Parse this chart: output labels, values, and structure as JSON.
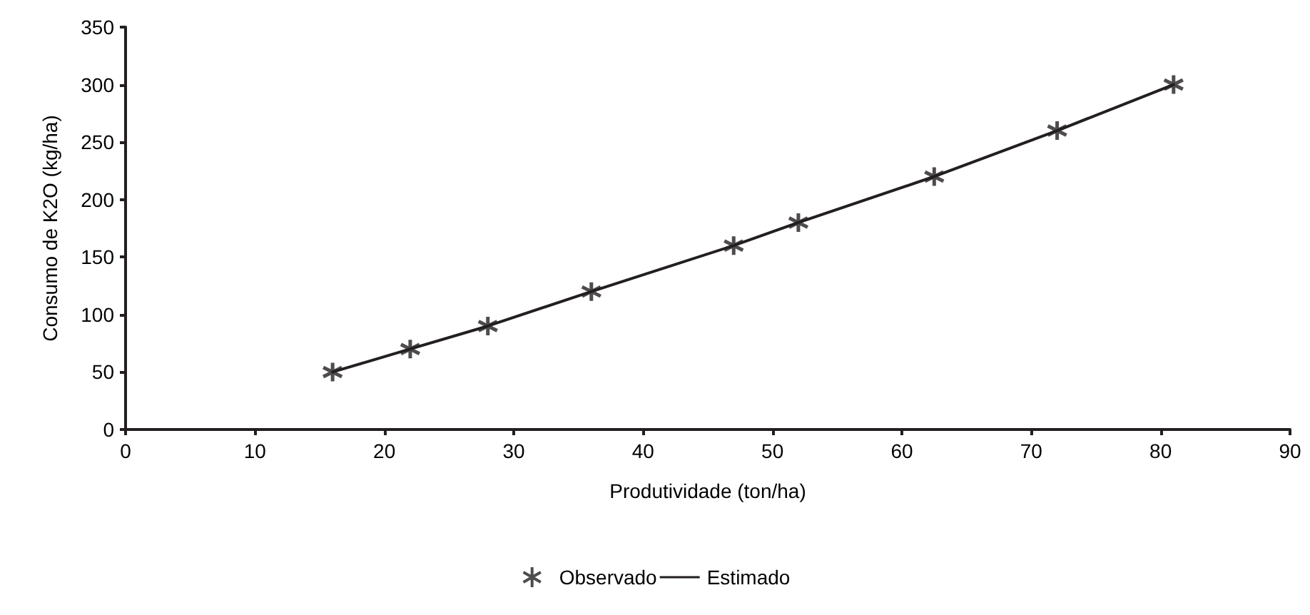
{
  "chart_data": {
    "type": "scatter",
    "xlabel": "Produtividade (ton/ha)",
    "ylabel": "Consumo de K2O (kg/ha)",
    "xlim": [
      0,
      90
    ],
    "xticks": [
      0,
      10,
      20,
      30,
      40,
      50,
      60,
      70,
      80,
      90
    ],
    "ylim": [
      0,
      350
    ],
    "yticks": [
      0,
      50,
      100,
      150,
      200,
      250,
      300,
      350
    ],
    "grid": false,
    "legend": "bottom",
    "series": [
      {
        "name": "Observado",
        "marker": "cross",
        "color": "#231f20",
        "x": [
          16,
          22,
          28,
          36,
          47,
          52,
          62.5,
          72,
          81
        ],
        "values": [
          50,
          70,
          90,
          120,
          160,
          180,
          220,
          260,
          300
        ]
      },
      {
        "name": "Estimado",
        "type": "line",
        "marker": "none",
        "line_style": "solid",
        "color": "#231f20",
        "x": [
          16,
          22,
          28,
          36,
          47,
          52,
          62.5,
          72,
          81
        ],
        "values": [
          50,
          70,
          90,
          120,
          160,
          180,
          220,
          260,
          300
        ]
      }
    ]
  }
}
